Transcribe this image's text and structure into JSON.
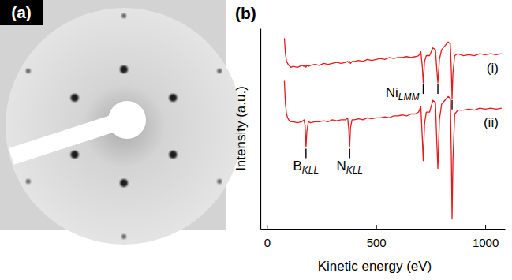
{
  "panel_a": {
    "title": "(a)"
  },
  "chart_data": {
    "type": "line",
    "title": "(b)",
    "x_label": "Kinetic energy (eV)",
    "y_label": "Intensity (a.u.)",
    "xlim": [
      -30,
      1090
    ],
    "xticks": [
      0,
      500,
      1000
    ],
    "ylim": [
      0,
      10.3
    ],
    "yticks": [],
    "tick_labels": "x",
    "grid": false,
    "x": [
      80,
      85,
      90,
      95,
      100,
      110,
      120,
      140,
      160,
      170,
      175,
      179,
      183,
      190,
      200,
      220,
      240,
      260,
      280,
      300,
      320,
      340,
      360,
      370,
      375,
      379,
      383,
      390,
      400,
      420,
      440,
      460,
      480,
      500,
      520,
      540,
      560,
      580,
      600,
      620,
      640,
      660,
      680,
      695,
      705,
      712,
      716,
      722,
      730,
      745,
      760,
      772,
      778,
      783,
      790,
      800,
      815,
      830,
      840,
      845,
      848,
      852,
      860,
      875,
      900,
      925,
      950,
      975,
      1000,
      1025,
      1050,
      1075
    ],
    "series": [
      {
        "name": "(i)",
        "color": "#e8191c",
        "values": [
          9.8,
          9.0,
          8.6,
          8.5,
          8.4,
          8.3,
          8.35,
          8.3,
          8.4,
          8.35,
          8.4,
          8.3,
          8.4,
          8.35,
          8.4,
          8.45,
          8.4,
          8.5,
          8.45,
          8.5,
          8.55,
          8.5,
          8.55,
          8.6,
          8.55,
          8.6,
          8.5,
          8.6,
          8.6,
          8.65,
          8.6,
          8.7,
          8.65,
          8.7,
          8.75,
          8.7,
          8.8,
          8.75,
          8.8,
          8.8,
          8.85,
          8.8,
          8.85,
          8.9,
          9.1,
          8.3,
          7.5,
          8.6,
          8.9,
          8.9,
          9.3,
          9.2,
          8.2,
          7.5,
          8.7,
          9.2,
          9.4,
          9.6,
          9.5,
          8.0,
          6.7,
          8.0,
          8.9,
          9.0,
          8.9,
          8.95,
          8.9,
          9.0,
          8.95,
          9.0,
          8.95,
          9.0
        ],
        "annotations": [
          {
            "text": "Ni",
            "subscript": "LMM",
            "x": [
              716,
              783,
              848
            ]
          }
        ]
      },
      {
        "name": "(ii)",
        "color": "#e8191c",
        "values": [
          7.6,
          6.4,
          5.9,
          5.7,
          5.6,
          5.5,
          5.5,
          5.45,
          5.5,
          5.6,
          5.3,
          4.2,
          5.0,
          5.5,
          5.45,
          5.5,
          5.5,
          5.55,
          5.5,
          5.6,
          5.55,
          5.6,
          5.6,
          5.7,
          5.1,
          4.2,
          5.2,
          5.6,
          5.6,
          5.65,
          5.6,
          5.7,
          5.65,
          5.7,
          5.7,
          5.75,
          5.7,
          5.8,
          5.8,
          5.85,
          5.8,
          5.9,
          5.9,
          6.0,
          6.3,
          4.6,
          3.5,
          5.4,
          6.0,
          6.0,
          6.6,
          6.5,
          4.5,
          3.1,
          5.6,
          6.4,
          6.6,
          6.8,
          6.7,
          3.5,
          0.5,
          3.5,
          5.9,
          6.1,
          6.1,
          6.15,
          6.1,
          6.2,
          6.15,
          6.2,
          6.15,
          6.2
        ],
        "annotations": [
          {
            "text": "B",
            "subscript": "KLL",
            "x": [
              179
            ]
          },
          {
            "text": "N",
            "subscript": "KLL",
            "x": [
              379
            ]
          }
        ]
      }
    ]
  }
}
